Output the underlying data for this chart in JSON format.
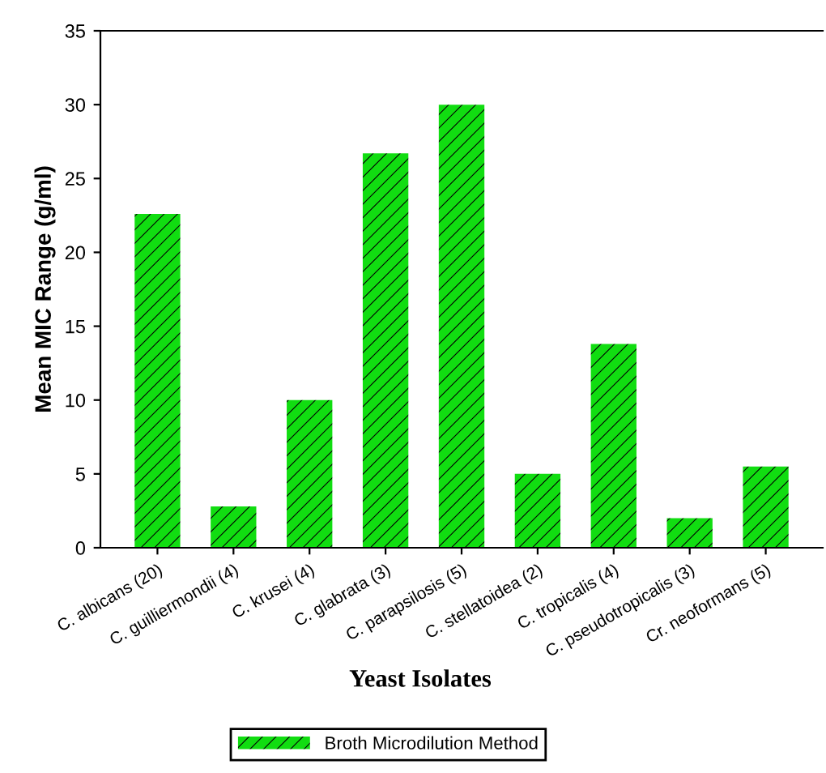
{
  "chart_data": {
    "type": "bar",
    "xlabel": "Yeast Isolates",
    "ylabel": "Mean MIC Range (g/ml)",
    "categories": [
      "C. albicans (20)",
      "C. guilliermondii (4)",
      "C. krusei (4)",
      "C. glabrata (3)",
      "C. parapsilosis (5)",
      "C. stellatoidea (2)",
      "C. tropicalis (4)",
      "C. pseudotropicalis (3)",
      "Cr. neoformans (5)"
    ],
    "series": [
      {
        "name": "Broth Microdilution Method",
        "color": "#11dd11",
        "values": [
          22.6,
          2.8,
          10,
          26.7,
          30,
          5,
          13.8,
          2.0,
          5.5
        ]
      }
    ],
    "ylim": [
      0,
      35
    ],
    "yticks": [
      0,
      5,
      10,
      15,
      20,
      25,
      30,
      35
    ],
    "grid": false,
    "legend": "bottom"
  }
}
